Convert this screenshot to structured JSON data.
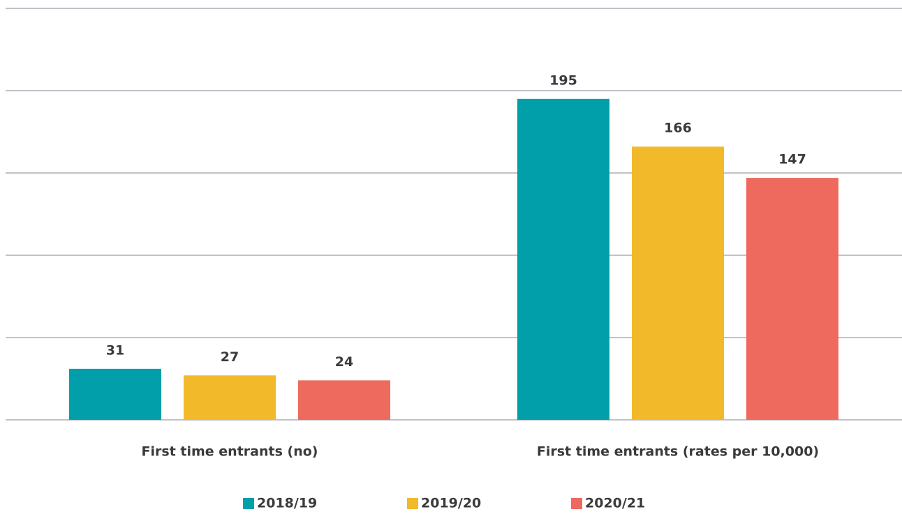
{
  "chart_data": {
    "type": "bar",
    "categories": [
      "First time entrants (no)",
      "First time entrants (rates per 10,000)"
    ],
    "series": [
      {
        "name": "2018/19",
        "color": "#009faa",
        "values": [
          31,
          195
        ]
      },
      {
        "name": "2019/20",
        "color": "#f2b92a",
        "values": [
          27,
          166
        ]
      },
      {
        "name": "2020/21",
        "color": "#ef6a5e",
        "values": [
          24,
          147
        ]
      }
    ],
    "ylim": [
      0,
      250
    ],
    "yticks": [
      0,
      50,
      100,
      150,
      200,
      250
    ],
    "grid": true,
    "legend": "bottom"
  }
}
